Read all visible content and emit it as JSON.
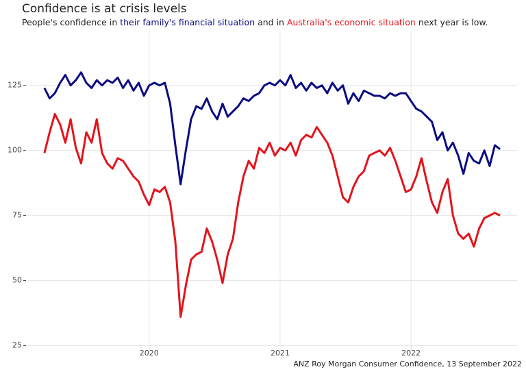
{
  "chart_data": {
    "type": "line",
    "title": "Confidence is at crisis levels",
    "subtitle": [
      "People's confidence in ",
      "their family's financial situation",
      " and in ",
      "Australia's economic situation",
      " next year is low."
    ],
    "caption": "ANZ Roy Morgan Consumer Confidence, 13 September 2022",
    "x": [
      2019.2,
      2019.24,
      2019.28,
      2019.32,
      2019.36,
      2019.4,
      2019.44,
      2019.48,
      2019.52,
      2019.56,
      2019.6,
      2019.64,
      2019.68,
      2019.72,
      2019.76,
      2019.8,
      2019.84,
      2019.88,
      2019.92,
      2019.96,
      2020,
      2020.04,
      2020.08,
      2020.12,
      2020.16,
      2020.2,
      2020.24,
      2020.28,
      2020.32,
      2020.36,
      2020.4,
      2020.44,
      2020.48,
      2020.52,
      2020.56,
      2020.6,
      2020.64,
      2020.68,
      2020.72,
      2020.76,
      2020.8,
      2020.84,
      2020.88,
      2020.92,
      2020.96,
      2021,
      2021.04,
      2021.08,
      2021.12,
      2021.16,
      2021.2,
      2021.24,
      2021.28,
      2021.32,
      2021.36,
      2021.4,
      2021.44,
      2021.48,
      2021.52,
      2021.56,
      2021.6,
      2021.64,
      2021.68,
      2021.72,
      2021.76,
      2021.8,
      2021.84,
      2021.88,
      2021.92,
      2021.96,
      2022,
      2022.04,
      2022.08,
      2022.12,
      2022.16,
      2022.2,
      2022.24,
      2022.28,
      2022.32,
      2022.36,
      2022.4,
      2022.44,
      2022.48,
      2022.52,
      2022.56,
      2022.6,
      2022.64,
      2022.68
    ],
    "series": [
      {
        "name": "their family's financial situation",
        "color": "#0b0b82",
        "values": [
          124,
          120,
          122,
          126,
          129,
          125,
          127,
          130,
          126,
          124,
          127,
          125,
          127,
          126,
          128,
          124,
          127,
          123,
          126,
          121,
          125,
          126,
          125,
          126,
          118,
          102,
          87,
          100,
          112,
          117,
          116,
          120,
          115,
          112,
          118,
          113,
          115,
          117,
          120,
          119,
          121,
          122,
          125,
          126,
          125,
          127,
          125,
          129,
          124,
          126,
          123,
          126,
          124,
          125,
          122,
          126,
          123,
          125,
          118,
          122,
          119,
          123,
          122,
          121,
          121,
          120,
          122,
          121,
          122,
          122,
          119,
          116,
          115,
          113,
          111,
          104,
          107,
          100,
          103,
          98,
          91,
          99,
          96,
          95,
          100,
          94,
          102,
          100.5
        ]
      },
      {
        "name": "Australia's economic situation",
        "color": "#e3141c",
        "values": [
          99,
          107,
          114,
          110,
          103,
          112,
          101,
          95,
          107,
          103,
          112,
          99,
          95,
          93,
          97,
          96,
          93,
          90,
          88,
          83,
          79,
          85,
          84,
          86,
          80,
          65,
          36,
          48,
          58,
          60,
          61,
          70,
          65,
          58,
          49,
          60,
          66,
          80,
          90,
          96,
          93,
          101,
          99,
          103,
          98,
          101,
          100,
          103,
          98,
          104,
          106,
          105,
          109,
          106,
          103,
          98,
          90,
          82,
          80,
          86,
          90,
          92,
          98,
          99,
          100,
          98,
          101,
          96,
          90,
          84,
          85,
          90,
          97,
          88,
          80,
          76,
          84,
          89,
          75,
          68,
          66,
          68,
          63,
          70,
          74,
          75,
          76,
          75
        ]
      }
    ],
    "xlim": [
      2019.07,
      2022.81
    ],
    "xticks": [
      2020,
      2021,
      2022
    ],
    "ylim": [
      23,
      146
    ],
    "yticks": [
      25,
      50,
      75,
      100,
      125
    ],
    "grid": true
  }
}
